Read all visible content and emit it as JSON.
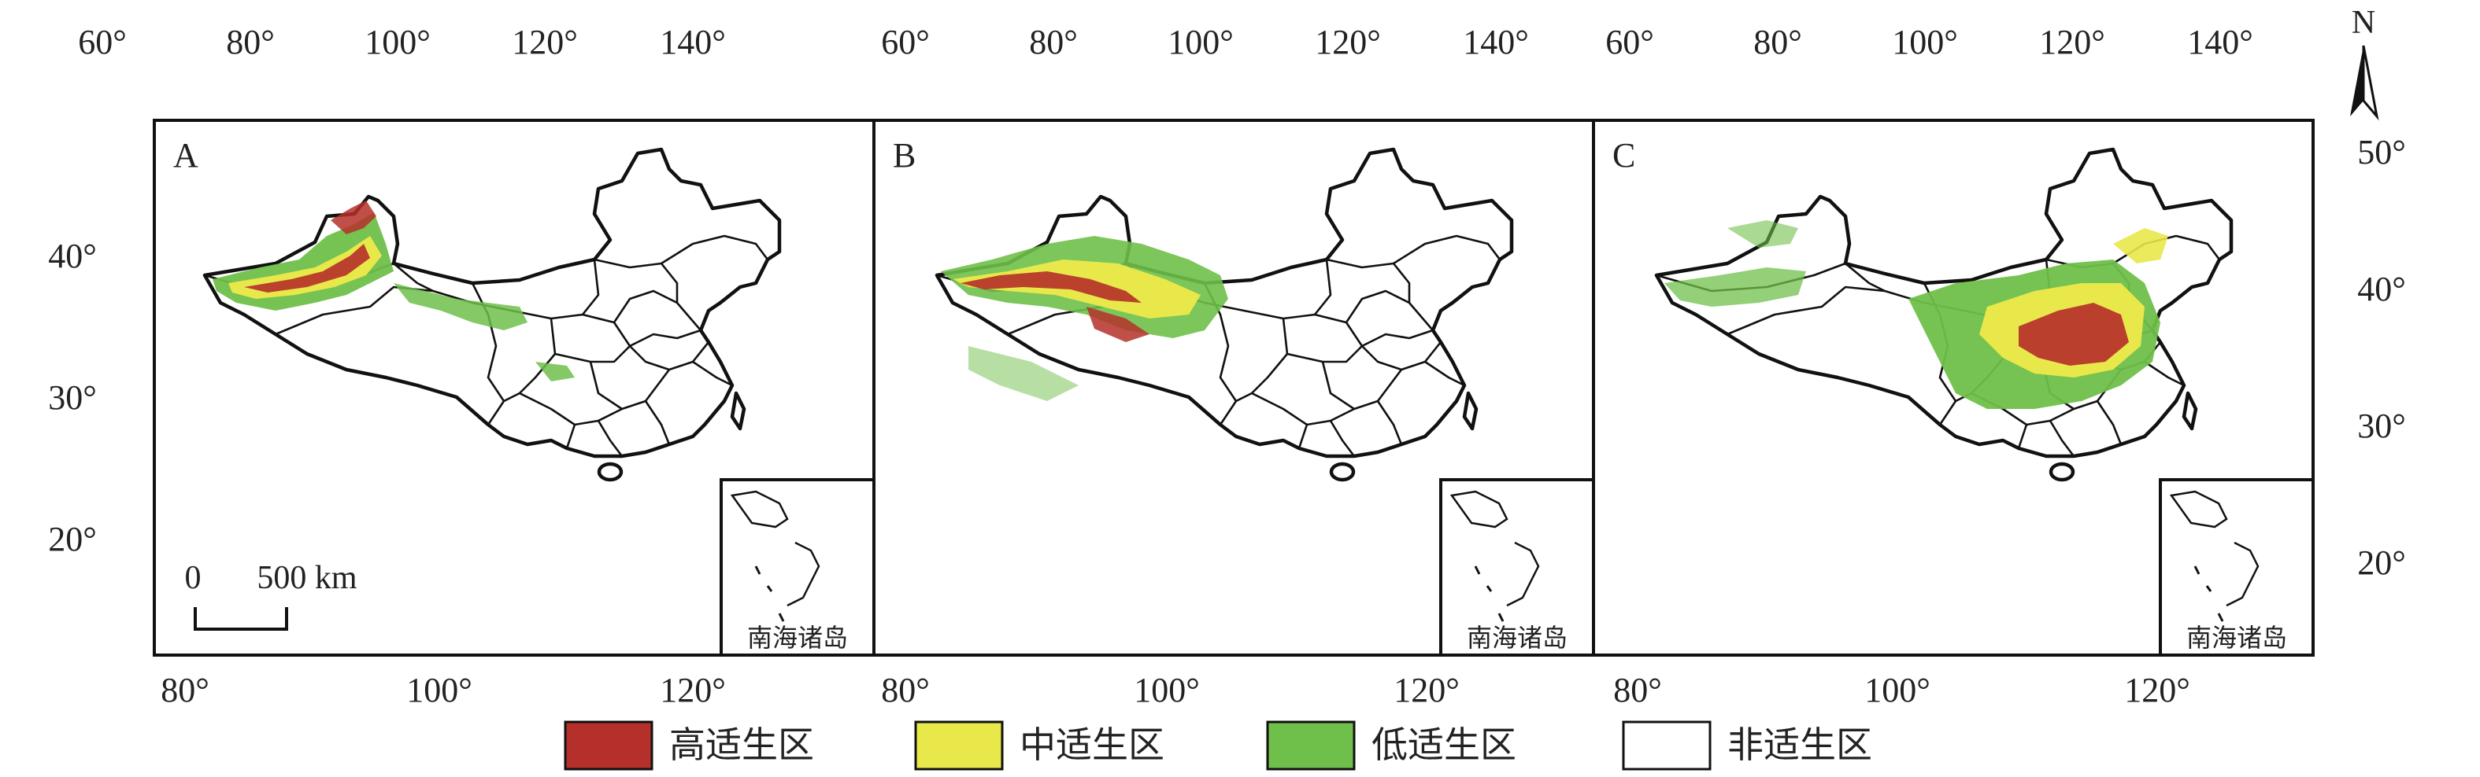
{
  "top_axis_ticks": [
    "60°",
    "80°",
    "100°",
    "120°",
    "140°"
  ],
  "bottom_axis_ticks": [
    "80°",
    "100°",
    "120°"
  ],
  "left_axis_ticks": [
    "40°",
    "30°",
    "20°"
  ],
  "right_axis_ticks": [
    "50°",
    "40°",
    "30°",
    "20°"
  ],
  "panels": [
    {
      "letter": "A",
      "inset_label": "南海诸岛",
      "pattern": "northwest"
    },
    {
      "letter": "B",
      "inset_label": "南海诸岛",
      "pattern": "northwest-plateau"
    },
    {
      "letter": "C",
      "inset_label": "南海诸岛",
      "pattern": "north-china-plain"
    }
  ],
  "scale_bar": {
    "zero": "0",
    "distance": "500 km"
  },
  "north_arrow": {
    "label": "N"
  },
  "legend": [
    {
      "label": "高适生区",
      "color": "#b5302a"
    },
    {
      "label": "中适生区",
      "color": "#e8e84a"
    },
    {
      "label": "低适生区",
      "color": "#6fc04a"
    },
    {
      "label": "非适生区",
      "color": "#ffffff"
    }
  ]
}
